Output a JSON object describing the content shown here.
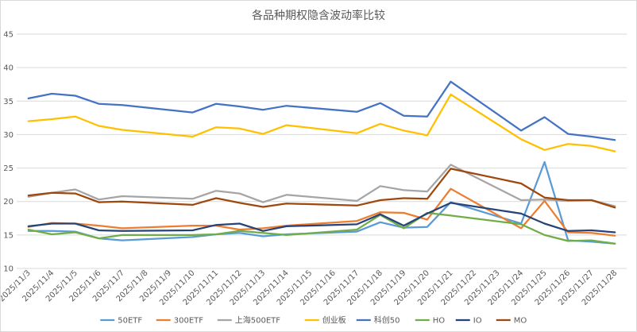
{
  "chart_data": {
    "type": "line",
    "title": "各品种期权隐含波动率比较",
    "xlabel": "",
    "ylabel": "",
    "ylim": [
      10,
      45
    ],
    "yticks": [
      10,
      15,
      20,
      25,
      30,
      35,
      40,
      45
    ],
    "grid": true,
    "legend_position": "bottom",
    "categories": [
      "2025/11/3",
      "2025/11/4",
      "2025/11/5",
      "2025/11/6",
      "2025/11/7",
      "2025/11/8",
      "2025/11/9",
      "2025/11/10",
      "2025/11/11",
      "2025/11/12",
      "2025/11/13",
      "2025/11/14",
      "2025/11/15",
      "2025/11/16",
      "2025/11/17",
      "2025/11/18",
      "2025/11/19",
      "2025/11/20",
      "2025/11/21",
      "2025/11/22",
      "2025/11/23",
      "2025/11/24",
      "2025/11/25",
      "2025/11/26",
      "2025/11/27",
      "2025/11/28"
    ],
    "series": [
      {
        "name": "50ETF",
        "color": "#5b9bd5",
        "values": [
          15.6,
          15.6,
          15.5,
          14.5,
          14.2,
          null,
          null,
          14.7,
          15.1,
          15.3,
          14.8,
          15.1,
          null,
          null,
          15.5,
          16.9,
          16.1,
          16.2,
          19.9,
          null,
          null,
          16.7,
          25.9,
          14.2,
          14.0,
          13.7
        ]
      },
      {
        "name": "300ETF",
        "color": "#ed7d31",
        "values": [
          16.2,
          16.8,
          16.7,
          16.4,
          16.0,
          null,
          null,
          16.4,
          16.4,
          15.8,
          16.0,
          16.4,
          null,
          null,
          17.1,
          18.4,
          18.3,
          17.3,
          21.9,
          null,
          null,
          16.0,
          20.1,
          15.4,
          15.3,
          14.9
        ]
      },
      {
        "name": "上海500ETF",
        "color": "#a5a5a5",
        "values": [
          20.7,
          21.3,
          21.8,
          20.3,
          20.8,
          null,
          null,
          20.4,
          21.6,
          21.2,
          19.9,
          21.0,
          null,
          null,
          20.1,
          22.3,
          21.7,
          21.5,
          25.5,
          null,
          null,
          20.2,
          20.3,
          20.1,
          20.2,
          19.3
        ]
      },
      {
        "name": "创业板",
        "color": "#ffc000",
        "values": [
          32.0,
          32.3,
          32.7,
          31.3,
          30.7,
          null,
          null,
          29.7,
          31.1,
          30.9,
          30.1,
          31.4,
          null,
          null,
          30.2,
          31.6,
          30.6,
          29.9,
          36.0,
          null,
          null,
          29.3,
          27.7,
          28.6,
          28.3,
          27.5
        ]
      },
      {
        "name": "科创50",
        "color": "#4472c4",
        "values": [
          35.4,
          36.1,
          35.8,
          34.6,
          34.4,
          null,
          null,
          33.3,
          34.6,
          34.2,
          33.7,
          34.3,
          null,
          null,
          33.4,
          34.7,
          32.8,
          32.7,
          37.9,
          null,
          null,
          30.6,
          32.6,
          30.1,
          29.7,
          29.2
        ]
      },
      {
        "name": "HO",
        "color": "#70ad47",
        "values": [
          15.8,
          15.1,
          15.4,
          14.5,
          15.0,
          null,
          null,
          15.0,
          15.1,
          15.6,
          15.3,
          15.0,
          null,
          null,
          15.8,
          18.0,
          16.0,
          18.3,
          17.9,
          null,
          null,
          16.6,
          15.0,
          14.1,
          14.2,
          13.7
        ]
      },
      {
        "name": "IO",
        "color": "#264478",
        "values": [
          16.3,
          16.7,
          16.7,
          15.7,
          15.6,
          null,
          null,
          15.7,
          16.5,
          16.7,
          15.6,
          16.3,
          null,
          null,
          16.6,
          18.1,
          16.4,
          18.2,
          19.8,
          null,
          null,
          18.2,
          16.7,
          15.6,
          15.7,
          15.4
        ]
      },
      {
        "name": "MO",
        "color": "#9e480e",
        "values": [
          20.9,
          21.3,
          21.2,
          19.9,
          20.0,
          null,
          null,
          19.5,
          20.5,
          19.8,
          19.2,
          19.7,
          null,
          null,
          19.4,
          20.2,
          20.5,
          20.4,
          24.9,
          null,
          null,
          22.7,
          20.6,
          20.2,
          20.2,
          19.1
        ]
      }
    ]
  }
}
